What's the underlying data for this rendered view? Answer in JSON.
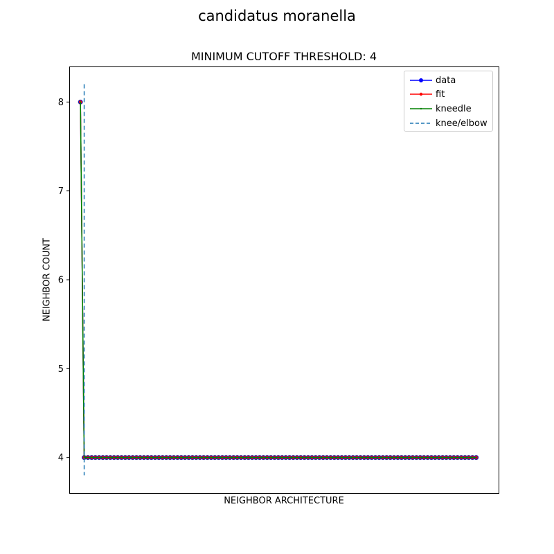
{
  "figure": {
    "title": "candidatus moranella"
  },
  "chart_data": {
    "type": "line",
    "title": "MINIMUM CUTOFF THRESHOLD: 4",
    "xlabel": "NEIGHBOR ARCHITECTURE",
    "ylabel": "NEIGHBOR COUNT",
    "x_tick_labels_shown": false,
    "xlim": [
      -3,
      112
    ],
    "ylim": [
      3.6,
      8.4
    ],
    "yticks": [
      4,
      5,
      6,
      7,
      8
    ],
    "x": [
      0,
      1,
      2,
      3,
      4,
      5,
      6,
      7,
      8,
      9,
      10,
      11,
      12,
      13,
      14,
      15,
      16,
      17,
      18,
      19,
      20,
      21,
      22,
      23,
      24,
      25,
      26,
      27,
      28,
      29,
      30,
      31,
      32,
      33,
      34,
      35,
      36,
      37,
      38,
      39,
      40,
      41,
      42,
      43,
      44,
      45,
      46,
      47,
      48,
      49,
      50,
      51,
      52,
      53,
      54,
      55,
      56,
      57,
      58,
      59,
      60,
      61,
      62,
      63,
      64,
      65,
      66,
      67,
      68,
      69,
      70,
      71,
      72,
      73,
      74,
      75,
      76,
      77,
      78,
      79,
      80,
      81,
      82,
      83,
      84,
      85,
      86,
      87,
      88,
      89,
      90,
      91,
      92,
      93,
      94,
      95,
      96,
      97,
      98,
      99,
      100,
      101,
      102,
      103,
      104,
      105,
      106
    ],
    "series": [
      {
        "name": "data",
        "color": "#0000ff",
        "marker": "circle",
        "values": [
          8,
          4,
          4,
          4,
          4,
          4,
          4,
          4,
          4,
          4,
          4,
          4,
          4,
          4,
          4,
          4,
          4,
          4,
          4,
          4,
          4,
          4,
          4,
          4,
          4,
          4,
          4,
          4,
          4,
          4,
          4,
          4,
          4,
          4,
          4,
          4,
          4,
          4,
          4,
          4,
          4,
          4,
          4,
          4,
          4,
          4,
          4,
          4,
          4,
          4,
          4,
          4,
          4,
          4,
          4,
          4,
          4,
          4,
          4,
          4,
          4,
          4,
          4,
          4,
          4,
          4,
          4,
          4,
          4,
          4,
          4,
          4,
          4,
          4,
          4,
          4,
          4,
          4,
          4,
          4,
          4,
          4,
          4,
          4,
          4,
          4,
          4,
          4,
          4,
          4,
          4,
          4,
          4,
          4,
          4,
          4,
          4,
          4,
          4,
          4,
          4,
          4,
          4,
          4,
          4,
          4,
          4
        ]
      },
      {
        "name": "fit",
        "color": "#ff0000",
        "marker": "small-circle",
        "values": [
          8,
          4,
          4,
          4,
          4,
          4,
          4,
          4,
          4,
          4,
          4,
          4,
          4,
          4,
          4,
          4,
          4,
          4,
          4,
          4,
          4,
          4,
          4,
          4,
          4,
          4,
          4,
          4,
          4,
          4,
          4,
          4,
          4,
          4,
          4,
          4,
          4,
          4,
          4,
          4,
          4,
          4,
          4,
          4,
          4,
          4,
          4,
          4,
          4,
          4,
          4,
          4,
          4,
          4,
          4,
          4,
          4,
          4,
          4,
          4,
          4,
          4,
          4,
          4,
          4,
          4,
          4,
          4,
          4,
          4,
          4,
          4,
          4,
          4,
          4,
          4,
          4,
          4,
          4,
          4,
          4,
          4,
          4,
          4,
          4,
          4,
          4,
          4,
          4,
          4,
          4,
          4,
          4,
          4,
          4,
          4,
          4,
          4,
          4,
          4,
          4,
          4,
          4,
          4,
          4,
          4,
          4
        ]
      },
      {
        "name": "kneedle",
        "color": "#008000",
        "marker": "point",
        "values": [
          8,
          4,
          4,
          4,
          4,
          4,
          4,
          4,
          4,
          4,
          4,
          4,
          4,
          4,
          4,
          4,
          4,
          4,
          4,
          4,
          4,
          4,
          4,
          4,
          4,
          4,
          4,
          4,
          4,
          4,
          4,
          4,
          4,
          4,
          4,
          4,
          4,
          4,
          4,
          4,
          4,
          4,
          4,
          4,
          4,
          4,
          4,
          4,
          4,
          4,
          4,
          4,
          4,
          4,
          4,
          4,
          4,
          4,
          4,
          4,
          4,
          4,
          4,
          4,
          4,
          4,
          4,
          4,
          4,
          4,
          4,
          4,
          4,
          4,
          4,
          4,
          4,
          4,
          4,
          4,
          4,
          4,
          4,
          4,
          4,
          4,
          4,
          4,
          4,
          4,
          4,
          4,
          4,
          4,
          4,
          4,
          4,
          4,
          4,
          4,
          4,
          4,
          4,
          4,
          4,
          4,
          4
        ]
      }
    ],
    "knee": {
      "name": "knee/elbow",
      "x": 1,
      "color": "#1f77b4",
      "style": "dashed",
      "ymin": 3.8,
      "ymax": 8.2
    },
    "grid": false,
    "legend_position": "top-right"
  }
}
